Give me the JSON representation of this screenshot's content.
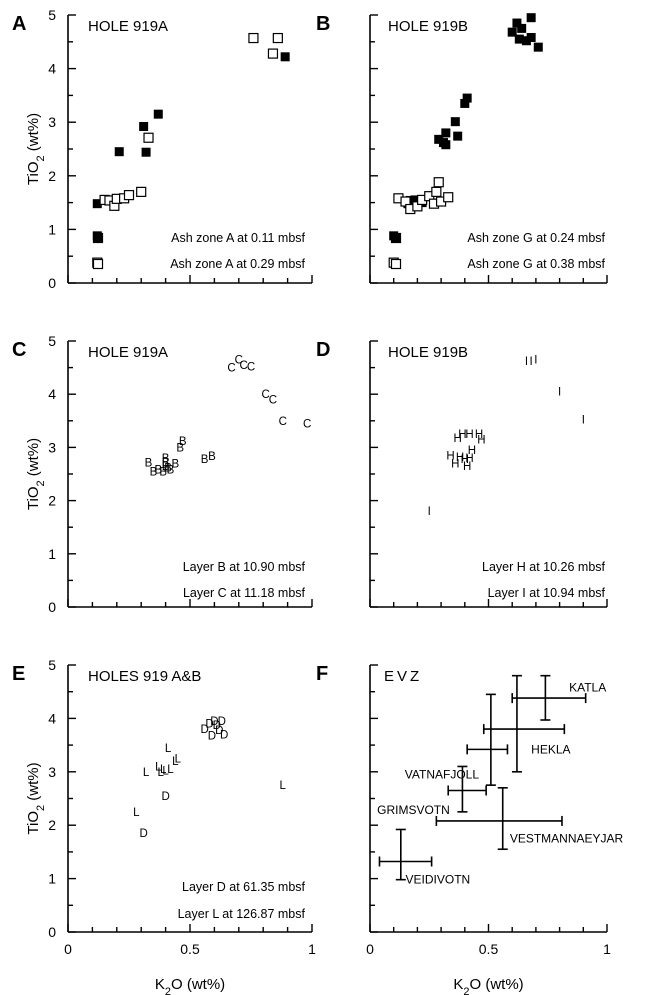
{
  "chart_data": [
    {
      "id": "A",
      "type": "scatter",
      "panel_letter": "A",
      "title": "HOLE 919A",
      "xlim": [
        0,
        1
      ],
      "ylim": [
        0,
        5
      ],
      "yticks": [
        "0",
        "1",
        "2",
        "3",
        "4",
        "5"
      ],
      "xticks": [],
      "ylabel": "TiO2 (wt%)",
      "xlabel": "",
      "series": [
        {
          "name": "Ash zone A at 0.11 mbsf",
          "marker": "filled-square",
          "points": [
            [
              0.12,
              0.88
            ],
            [
              0.12,
              1.48
            ],
            [
              0.21,
              2.45
            ],
            [
              0.31,
              2.92
            ],
            [
              0.32,
              2.44
            ],
            [
              0.37,
              3.15
            ],
            [
              0.89,
              4.22
            ]
          ]
        },
        {
          "name": "Ash zone A at 0.29 mbsf",
          "marker": "open-square",
          "points": [
            [
              0.12,
              0.38
            ],
            [
              0.15,
              1.55
            ],
            [
              0.17,
              1.54
            ],
            [
              0.19,
              1.44
            ],
            [
              0.2,
              1.57
            ],
            [
              0.23,
              1.58
            ],
            [
              0.25,
              1.64
            ],
            [
              0.3,
              1.7
            ],
            [
              0.33,
              2.71
            ],
            [
              0.76,
              4.57
            ],
            [
              0.84,
              4.28
            ],
            [
              0.86,
              4.57
            ]
          ]
        }
      ]
    },
    {
      "id": "B",
      "type": "scatter",
      "panel_letter": "B",
      "title": "HOLE 919B",
      "xlim": [
        0,
        1
      ],
      "ylim": [
        0,
        5
      ],
      "yticks": [],
      "xticks": [],
      "ylabel": "",
      "xlabel": "",
      "series": [
        {
          "name": "Ash zone G at 0.24 mbsf",
          "marker": "filled-square",
          "points": [
            [
              0.1,
              0.88
            ],
            [
              0.16,
              1.48
            ],
            [
              0.17,
              1.54
            ],
            [
              0.18,
              1.52
            ],
            [
              0.19,
              1.55
            ],
            [
              0.2,
              1.52
            ],
            [
              0.22,
              1.5
            ],
            [
              0.29,
              2.68
            ],
            [
              0.31,
              2.62
            ],
            [
              0.32,
              2.8
            ],
            [
              0.32,
              2.58
            ],
            [
              0.36,
              3.01
            ],
            [
              0.37,
              2.74
            ],
            [
              0.4,
              3.35
            ],
            [
              0.41,
              3.45
            ],
            [
              0.6,
              4.68
            ],
            [
              0.62,
              4.85
            ],
            [
              0.63,
              4.55
            ],
            [
              0.64,
              4.75
            ],
            [
              0.66,
              4.52
            ],
            [
              0.68,
              4.95
            ],
            [
              0.68,
              4.58
            ],
            [
              0.71,
              4.4
            ]
          ]
        },
        {
          "name": "Ash zone G at 0.38 mbsf",
          "marker": "open-square",
          "points": [
            [
              0.1,
              0.38
            ],
            [
              0.12,
              1.58
            ],
            [
              0.15,
              1.52
            ],
            [
              0.17,
              1.38
            ],
            [
              0.2,
              1.43
            ],
            [
              0.22,
              1.55
            ],
            [
              0.25,
              1.62
            ],
            [
              0.27,
              1.48
            ],
            [
              0.28,
              1.7
            ],
            [
              0.29,
              1.88
            ],
            [
              0.3,
              1.52
            ],
            [
              0.33,
              1.6
            ]
          ]
        }
      ],
      "notes": [
        "Ash zone G at 0.24 mbsf",
        "Ash zone G at 0.38 mbsf"
      ]
    },
    {
      "id": "C",
      "type": "scatter",
      "panel_letter": "C",
      "title": "HOLE 919A",
      "xlim": [
        0,
        1
      ],
      "ylim": [
        0,
        5
      ],
      "yticks": [
        "0",
        "1",
        "2",
        "3",
        "4",
        "5"
      ],
      "xticks": [],
      "ylabel": "TiO2 (wt%)",
      "xlabel": "",
      "series": [
        {
          "name": "Layer B at 10.90 mbsf",
          "marker": "letter",
          "letter": "B",
          "points": [
            [
              0.33,
              2.72
            ],
            [
              0.35,
              2.55
            ],
            [
              0.37,
              2.58
            ],
            [
              0.39,
              2.55
            ],
            [
              0.4,
              2.65
            ],
            [
              0.4,
              2.72
            ],
            [
              0.4,
              2.8
            ],
            [
              0.41,
              2.62
            ],
            [
              0.42,
              2.58
            ],
            [
              0.44,
              2.7
            ],
            [
              0.46,
              3.0
            ],
            [
              0.47,
              3.12
            ],
            [
              0.56,
              2.78
            ],
            [
              0.59,
              2.84
            ]
          ]
        },
        {
          "name": "Layer C at 11.18 mbsf",
          "marker": "letter",
          "letter": "C",
          "points": [
            [
              0.67,
              4.5
            ],
            [
              0.7,
              4.65
            ],
            [
              0.72,
              4.55
            ],
            [
              0.75,
              4.52
            ],
            [
              0.81,
              4.0
            ],
            [
              0.84,
              3.9
            ],
            [
              0.88,
              3.5
            ],
            [
              0.98,
              3.45
            ]
          ]
        }
      ]
    },
    {
      "id": "D",
      "type": "scatter",
      "panel_letter": "D",
      "title": "HOLE 919B",
      "xlim": [
        0,
        1
      ],
      "ylim": [
        0,
        5
      ],
      "yticks": [],
      "xticks": [],
      "ylabel": "",
      "xlabel": "",
      "series": [
        {
          "name": "Layer H at 10.26 mbsf",
          "marker": "letter",
          "letter": "H",
          "points": [
            [
              0.34,
              2.85
            ],
            [
              0.36,
              2.7
            ],
            [
              0.37,
              3.18
            ],
            [
              0.38,
              2.82
            ],
            [
              0.39,
              3.25
            ],
            [
              0.4,
              2.78
            ],
            [
              0.41,
              2.65
            ],
            [
              0.42,
              3.25
            ],
            [
              0.42,
              2.8
            ],
            [
              0.43,
              2.95
            ],
            [
              0.46,
              3.25
            ],
            [
              0.47,
              3.15
            ]
          ]
        },
        {
          "name": "Layer I at 10.94 mbsf",
          "marker": "letter",
          "letter": "I",
          "points": [
            [
              0.25,
              1.8
            ],
            [
              0.66,
              4.62
            ],
            [
              0.68,
              4.62
            ],
            [
              0.7,
              4.65
            ],
            [
              0.8,
              4.05
            ],
            [
              0.9,
              3.52
            ]
          ]
        }
      ]
    },
    {
      "id": "E",
      "type": "scatter",
      "panel_letter": "E",
      "title": "HOLES 919 A&B",
      "xlim": [
        0,
        1
      ],
      "ylim": [
        0,
        5
      ],
      "yticks": [
        "0",
        "1",
        "2",
        "3",
        "4",
        "5"
      ],
      "xticks": [
        "0",
        "0.5",
        "1"
      ],
      "ylabel": "TiO2 (wt%)",
      "xlabel": "K2O (wt%)",
      "series": [
        {
          "name": "Layer D at 61.35 mbsf",
          "marker": "letter",
          "letter": "D",
          "points": [
            [
              0.31,
              1.85
            ],
            [
              0.4,
              2.55
            ],
            [
              0.56,
              3.8
            ],
            [
              0.58,
              3.9
            ],
            [
              0.59,
              3.68
            ],
            [
              0.6,
              3.95
            ],
            [
              0.61,
              3.88
            ],
            [
              0.62,
              3.78
            ],
            [
              0.63,
              3.95
            ],
            [
              0.64,
              3.7
            ]
          ]
        },
        {
          "name": "Layer L at 126.87 mbsf",
          "marker": "letter",
          "letter": "L",
          "points": [
            [
              0.28,
              2.25
            ],
            [
              0.32,
              3.0
            ],
            [
              0.37,
              3.1
            ],
            [
              0.38,
              3.0
            ],
            [
              0.39,
              3.05
            ],
            [
              0.4,
              3.02
            ],
            [
              0.41,
              3.45
            ],
            [
              0.42,
              3.05
            ],
            [
              0.44,
              3.2
            ],
            [
              0.45,
              3.25
            ],
            [
              0.88,
              2.75
            ]
          ]
        }
      ]
    },
    {
      "id": "F",
      "type": "scatter",
      "panel_letter": "F",
      "title": "EVZ",
      "xlim": [
        0,
        1
      ],
      "ylim": [
        0,
        5
      ],
      "yticks": [],
      "xticks": [
        "0",
        "0.5",
        "1"
      ],
      "ylabel": "",
      "xlabel": "K2O (wt%)",
      "ranges": [
        {
          "name": "KATLA",
          "x": 0.74,
          "y": 4.38,
          "xmin": 0.6,
          "xmax": 0.91,
          "ymin": 3.97,
          "ymax": 4.8,
          "label_at": [
            0.84,
            4.58
          ],
          "anchor": "start"
        },
        {
          "name": "HEKLA",
          "x": 0.62,
          "y": 3.8,
          "xmin": 0.48,
          "xmax": 0.82,
          "ymin": 3.0,
          "ymax": 4.8,
          "label_at": [
            0.68,
            3.42
          ],
          "anchor": "start"
        },
        {
          "name": "VATNAFJOLL",
          "x": 0.51,
          "y": 3.42,
          "xmin": 0.41,
          "xmax": 0.58,
          "ymin": 2.75,
          "ymax": 4.45,
          "label_at": [
            0.46,
            2.95
          ],
          "anchor": "end"
        },
        {
          "name": "GRIMSVOTN",
          "x": 0.39,
          "y": 2.65,
          "xmin": 0.33,
          "xmax": 0.49,
          "ymin": 2.25,
          "ymax": 3.1,
          "label_at": [
            0.03,
            2.28
          ],
          "anchor": "start"
        },
        {
          "name": "VESTMANNAEYJAR",
          "x": 0.56,
          "y": 2.08,
          "xmin": 0.28,
          "xmax": 0.81,
          "ymin": 1.55,
          "ymax": 2.7,
          "label_at": [
            0.59,
            1.75
          ],
          "anchor": "start"
        },
        {
          "name": "VEIDIVOTN",
          "x": 0.13,
          "y": 1.32,
          "xmin": 0.04,
          "xmax": 0.26,
          "ymin": 0.98,
          "ymax": 1.92,
          "label_at": [
            0.15,
            0.98
          ],
          "anchor": "start"
        }
      ]
    }
  ]
}
